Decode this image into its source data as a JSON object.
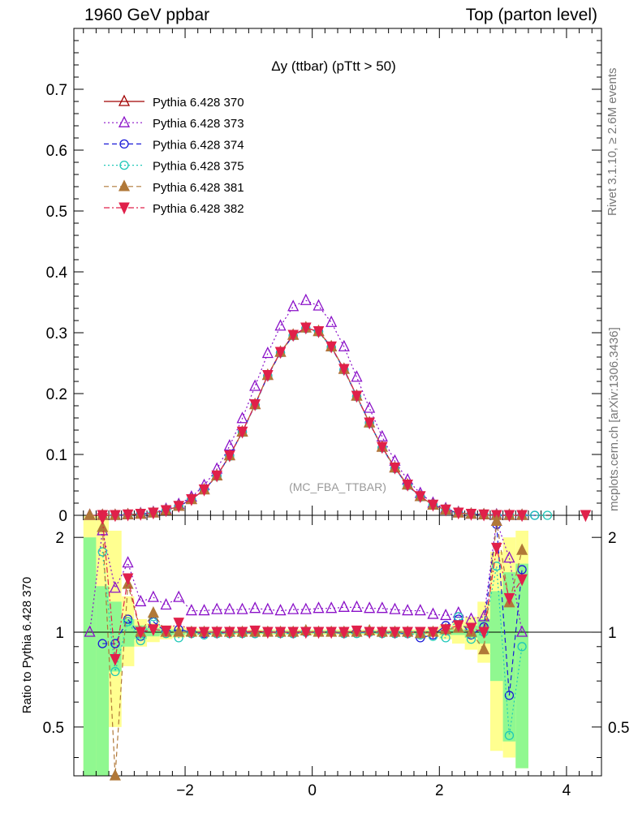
{
  "header": {
    "left": "1960 GeV ppbar",
    "right": "Top (parton level)"
  },
  "side_labels": {
    "rivet": "Rivet 3.1.10, ≥ 2.6M events",
    "mcplots": "mcplots.cern.ch [arXiv:1306.3436]"
  },
  "chart_data": [
    {
      "type": "line",
      "title": "Δy (ttbar) (pTtt > 50)",
      "watermark": "(MC_FBA_TTBAR)",
      "xlabel": "",
      "ylabel": "",
      "xlim": [
        -3.75,
        4.55
      ],
      "ylim": [
        0,
        0.8
      ],
      "yticks": [
        0,
        0.1,
        0.2,
        0.3,
        0.4,
        0.5,
        0.6,
        0.7
      ],
      "ytick_labels": [
        "0",
        "0.1",
        "0.2",
        "0.3",
        "0.4",
        "0.5",
        "0.6",
        "0.7"
      ],
      "legend_position": "top-left",
      "x": [
        -3.5,
        -3.3,
        -3.1,
        -2.9,
        -2.7,
        -2.5,
        -2.3,
        -2.1,
        -1.9,
        -1.7,
        -1.5,
        -1.3,
        -1.1,
        -0.9,
        -0.7,
        -0.5,
        -0.3,
        -0.1,
        0.1,
        0.3,
        0.5,
        0.7,
        0.9,
        1.1,
        1.3,
        1.5,
        1.7,
        1.9,
        2.1,
        2.3,
        2.5,
        2.7,
        2.9,
        3.1,
        3.3,
        3.5,
        3.7,
        3.9,
        4.1,
        4.3
      ],
      "series": [
        {
          "name": "Pythia 6.428 370",
          "color": "#a00000",
          "marker": "triangle-open",
          "dash": "solid",
          "values": [
            0,
            0,
            0,
            0.001,
            0.002,
            0.004,
            0.008,
            0.015,
            0.026,
            0.042,
            0.065,
            0.098,
            0.137,
            0.182,
            0.23,
            0.268,
            0.296,
            0.308,
            0.302,
            0.277,
            0.24,
            0.196,
            0.152,
            0.112,
            0.078,
            0.05,
            0.031,
            0.017,
            0.009,
            0.004,
            0.002,
            0.001,
            0,
            0,
            0,
            null,
            null,
            null,
            null,
            null
          ]
        },
        {
          "name": "Pythia 6.428 373",
          "color": "#8a10c8",
          "marker": "triangle-open",
          "dash": "dotted",
          "values": [
            0,
            0,
            0,
            0.001,
            0.003,
            0.005,
            0.01,
            0.018,
            0.03,
            0.049,
            0.076,
            0.114,
            0.159,
            0.212,
            0.266,
            0.311,
            0.343,
            0.353,
            0.344,
            0.317,
            0.277,
            0.227,
            0.176,
            0.129,
            0.089,
            0.058,
            0.036,
            0.02,
            0.011,
            0.005,
            0.002,
            0.001,
            0.001,
            0,
            0,
            null,
            null,
            null,
            null,
            null
          ]
        },
        {
          "name": "Pythia 6.428 374",
          "color": "#1a1ad8",
          "marker": "circle-open",
          "dash": "dashed",
          "values": [
            null,
            0,
            0,
            0.001,
            0.002,
            0.004,
            0.008,
            0.015,
            0.026,
            0.042,
            0.065,
            0.098,
            0.137,
            0.181,
            0.229,
            0.267,
            0.295,
            0.307,
            0.302,
            0.276,
            0.239,
            0.195,
            0.152,
            0.111,
            0.077,
            0.049,
            0.03,
            0.017,
            0.009,
            0.004,
            0.002,
            0.001,
            0,
            0,
            0,
            0,
            null,
            null,
            null,
            null
          ]
        },
        {
          "name": "Pythia 6.428 375",
          "color": "#20c8b8",
          "marker": "circle-open",
          "dash": "dotted",
          "values": [
            null,
            0,
            0,
            0.001,
            0.002,
            0.004,
            0.008,
            0.015,
            0.026,
            0.042,
            0.064,
            0.097,
            0.136,
            0.181,
            0.229,
            0.267,
            0.295,
            0.307,
            0.301,
            0.276,
            0.239,
            0.195,
            0.151,
            0.111,
            0.077,
            0.049,
            0.03,
            0.017,
            0.009,
            0.004,
            0.002,
            0.001,
            0,
            0,
            0,
            0,
            0,
            null,
            null,
            null
          ]
        },
        {
          "name": "Pythia 6.428 381",
          "color": "#b07838",
          "marker": "triangle-filled",
          "dash": "dashed",
          "values": [
            0,
            0,
            0,
            0.001,
            0.002,
            0.004,
            0.008,
            0.015,
            0.026,
            0.042,
            0.065,
            0.098,
            0.137,
            0.182,
            0.23,
            0.268,
            0.296,
            0.308,
            0.302,
            0.277,
            0.24,
            0.196,
            0.152,
            0.112,
            0.078,
            0.05,
            0.031,
            0.017,
            0.009,
            0.004,
            0.002,
            0.001,
            0,
            0,
            0,
            null,
            null,
            null,
            null,
            null
          ]
        },
        {
          "name": "Pythia 6.428 382",
          "color": "#e0204a",
          "marker": "triangle-down-filled",
          "dash": "dashdot",
          "values": [
            null,
            0,
            0,
            0.001,
            0.002,
            0.004,
            0.008,
            0.015,
            0.026,
            0.042,
            0.065,
            0.098,
            0.137,
            0.182,
            0.23,
            0.268,
            0.296,
            0.308,
            0.302,
            0.277,
            0.24,
            0.196,
            0.152,
            0.112,
            0.078,
            0.05,
            0.031,
            0.017,
            0.009,
            0.004,
            0.002,
            0.001,
            0,
            0,
            0,
            null,
            null,
            null,
            null,
            0
          ]
        }
      ]
    },
    {
      "type": "line",
      "title": "",
      "xlabel": "",
      "ylabel": "Ratio to Pythia 6.428 370",
      "xlim": [
        -3.75,
        4.55
      ],
      "ylim": [
        0.35,
        2.35
      ],
      "yticks": [
        0.5,
        1,
        2
      ],
      "ytick_labels": [
        "0.5",
        "1",
        "2"
      ],
      "xticks": [
        -2,
        0,
        2,
        4
      ],
      "xtick_labels": [
        "−2",
        "0",
        "2",
        "4"
      ],
      "reference_line": 1,
      "bands": {
        "yellow": [
          [
            -3.6,
            -3.4,
            0.35,
            2.35
          ],
          [
            -3.4,
            -3.2,
            0.35,
            2.35
          ],
          [
            -3.2,
            -3.0,
            0.5,
            2.1
          ],
          [
            -3.0,
            -2.8,
            0.78,
            1.3
          ],
          [
            -2.8,
            -2.6,
            0.9,
            1.1
          ],
          [
            -2.6,
            -2.4,
            0.93,
            1.07
          ],
          [
            -2.4,
            -2.2,
            0.95,
            1.05
          ],
          [
            -2.2,
            -2.0,
            0.96,
            1.04
          ],
          [
            -2.0,
            -1.8,
            0.97,
            1.03
          ],
          [
            -1.8,
            1.8,
            0.98,
            1.02
          ],
          [
            1.8,
            2.0,
            0.97,
            1.03
          ],
          [
            2.0,
            2.2,
            0.95,
            1.05
          ],
          [
            2.2,
            2.4,
            0.92,
            1.08
          ],
          [
            2.4,
            2.6,
            0.88,
            1.12
          ],
          [
            2.6,
            2.8,
            0.8,
            1.25
          ],
          [
            2.8,
            3.0,
            0.42,
            1.8
          ],
          [
            3.0,
            3.2,
            0.4,
            2.0
          ],
          [
            3.2,
            3.4,
            0.37,
            2.1
          ]
        ],
        "green": [
          [
            -3.6,
            -3.4,
            0.35,
            2.0
          ],
          [
            -3.4,
            -3.2,
            0.35,
            1.4
          ],
          [
            -3.2,
            -3.0,
            0.75,
            1.25
          ],
          [
            -3.0,
            -2.8,
            0.9,
            1.1
          ],
          [
            -2.8,
            -2.6,
            0.95,
            1.05
          ],
          [
            -2.6,
            -2.4,
            0.97,
            1.03
          ],
          [
            -2.4,
            -2.0,
            0.98,
            1.02
          ],
          [
            -2.0,
            2.0,
            0.99,
            1.01
          ],
          [
            2.0,
            2.4,
            0.98,
            1.02
          ],
          [
            2.4,
            2.6,
            0.96,
            1.05
          ],
          [
            2.6,
            2.8,
            0.92,
            1.1
          ],
          [
            2.8,
            3.0,
            0.7,
            1.35
          ],
          [
            3.0,
            3.2,
            0.45,
            1.55
          ],
          [
            3.2,
            3.4,
            0.37,
            1.65
          ]
        ]
      },
      "x": [
        -3.5,
        -3.3,
        -3.1,
        -2.9,
        -2.7,
        -2.5,
        -2.3,
        -2.1,
        -1.9,
        -1.7,
        -1.5,
        -1.3,
        -1.1,
        -0.9,
        -0.7,
        -0.5,
        -0.3,
        -0.1,
        0.1,
        0.3,
        0.5,
        0.7,
        0.9,
        1.1,
        1.3,
        1.5,
        1.7,
        1.9,
        2.1,
        2.3,
        2.5,
        2.7,
        2.9,
        3.1,
        3.3,
        3.5,
        3.7,
        3.9,
        4.1,
        4.3
      ],
      "series": [
        {
          "name": "Pythia 6.428 373",
          "color": "#8a10c8",
          "marker": "triangle-open",
          "dash": "dotted",
          "values": [
            1.0,
            2.1,
            1.38,
            1.66,
            1.25,
            1.29,
            1.22,
            1.29,
            1.17,
            1.17,
            1.18,
            1.18,
            1.18,
            1.19,
            1.18,
            1.17,
            1.18,
            1.18,
            1.19,
            1.19,
            1.2,
            1.2,
            1.19,
            1.19,
            1.18,
            1.17,
            1.17,
            1.14,
            1.13,
            1.15,
            1.1,
            1.12,
            2.25,
            1.72,
            1.0,
            null,
            null,
            null,
            null,
            null
          ]
        },
        {
          "name": "Pythia 6.428 374",
          "color": "#1a1ad8",
          "marker": "circle-open",
          "dash": "dashed",
          "values": [
            null,
            0.92,
            0.92,
            1.1,
            0.97,
            1.08,
            1.0,
            1.02,
            1.0,
            0.99,
            0.99,
            1.0,
            1.0,
            0.99,
            1.0,
            1.0,
            0.99,
            1.0,
            1.0,
            1.0,
            0.99,
            1.0,
            1.0,
            1.0,
            0.99,
            0.99,
            0.96,
            0.98,
            1.05,
            1.1,
            0.98,
            1.04,
            2.2,
            0.63,
            1.58,
            null,
            null,
            null,
            null,
            null
          ]
        },
        {
          "name": "Pythia 6.428 375",
          "color": "#20c8b8",
          "marker": "circle-open",
          "dash": "dotted",
          "values": [
            null,
            1.8,
            0.75,
            1.08,
            0.94,
            1.12,
            0.99,
            0.96,
            0.99,
            0.98,
            0.99,
            0.99,
            0.99,
            0.99,
            1.0,
            0.99,
            0.99,
            1.0,
            1.0,
            1.0,
            0.99,
            0.99,
            1.0,
            0.99,
            0.99,
            0.99,
            0.98,
            0.97,
            0.96,
            1.12,
            0.95,
            1.0,
            1.62,
            0.47,
            0.9,
            null,
            null,
            null,
            null,
            null
          ]
        },
        {
          "name": "Pythia 6.428 381",
          "color": "#b07838",
          "marker": "triangle-filled",
          "dash": "dashed",
          "values": [
            null,
            2.15,
            0.35,
            1.42,
            1.0,
            1.15,
            1.0,
            1.0,
            1.0,
            1.0,
            1.0,
            1.0,
            1.0,
            1.0,
            1.0,
            1.0,
            1.0,
            1.01,
            1.0,
            1.0,
            1.0,
            1.0,
            1.01,
            1.0,
            1.0,
            1.0,
            0.99,
            1.0,
            1.02,
            1.03,
            1.0,
            0.88,
            2.25,
            1.24,
            1.82,
            null,
            null,
            null,
            null,
            null
          ]
        },
        {
          "name": "Pythia 6.428 382",
          "color": "#e0204a",
          "marker": "triangle-down-filled",
          "dash": "dashdot",
          "values": [
            null,
            2.3,
            0.82,
            1.48,
            1.0,
            1.02,
            1.01,
            1.07,
            1.0,
            1.0,
            1.0,
            1.0,
            1.0,
            1.01,
            1.0,
            1.0,
            1.0,
            1.0,
            1.0,
            1.0,
            1.0,
            1.01,
            1.0,
            1.0,
            1.0,
            1.0,
            1.0,
            1.0,
            1.02,
            1.05,
            1.03,
            1.0,
            1.85,
            1.28,
            1.47,
            null,
            null,
            null,
            null,
            null
          ]
        }
      ]
    }
  ]
}
